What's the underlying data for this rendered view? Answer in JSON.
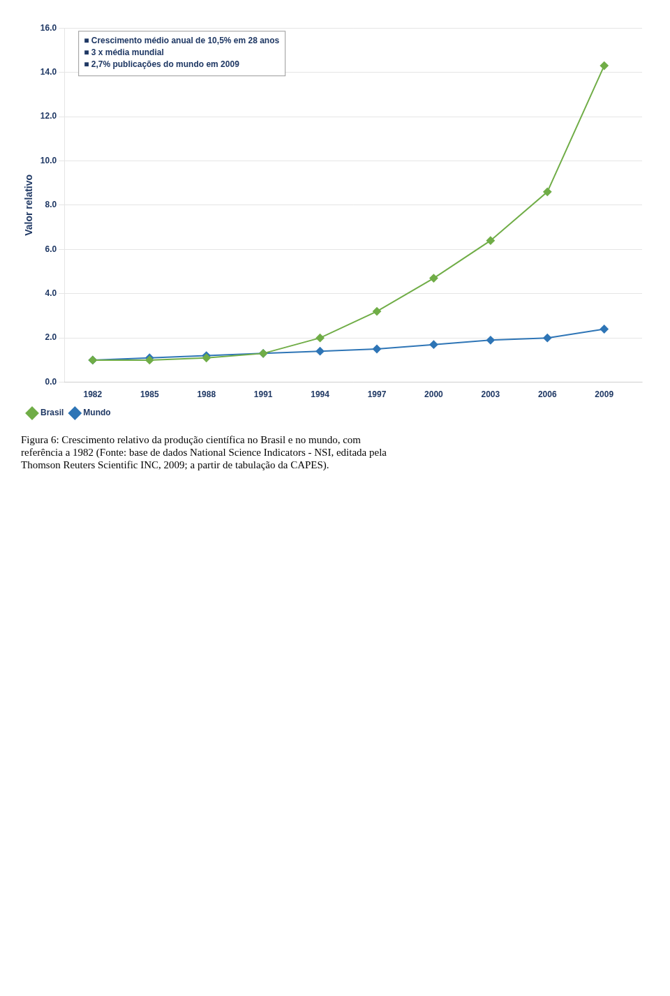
{
  "chart_data": {
    "type": "line",
    "title": "Figura 6:  Crescimento relativo da produção científica no Brasil e no mundo, com referência a 1982 (Fonte:  base de dados National Science Indicators - NSI, editada pela Thomson Reuters Scientific INC, 2009; a partir de tabulação da CAPES).",
    "y_label": "Valor relativo",
    "x": [
      1982,
      1985,
      1988,
      1991,
      1994,
      1997,
      2000,
      2003,
      2006,
      2009
    ],
    "series": [
      {
        "name": "Brasil",
        "color": "#70ad47",
        "marker": "diamond",
        "values": [
          1.0,
          1.0,
          1.1,
          1.3,
          2.0,
          3.2,
          4.7,
          6.4,
          8.6,
          14.3
        ]
      },
      {
        "name": "Mundo",
        "color": "#2e75b6",
        "marker": "diamond",
        "values": [
          1.0,
          1.1,
          1.2,
          1.3,
          1.4,
          1.5,
          1.7,
          1.9,
          2.0,
          2.4
        ]
      }
    ],
    "xlim": [
      1980.5,
      2011
    ],
    "xticks": [
      1982,
      1985,
      1988,
      1991,
      1994,
      1997,
      2000,
      2003,
      2006,
      2009
    ],
    "ylim": [
      0.0,
      16.0
    ],
    "yticks": [
      {
        "value": 0,
        "label": "0.0"
      },
      {
        "value": 2,
        "label": "2.0"
      },
      {
        "value": 4,
        "label": "4.0"
      },
      {
        "value": 6,
        "label": "6.0"
      },
      {
        "value": 8,
        "label": "8.0"
      },
      {
        "value": 10,
        "label": "10.0"
      },
      {
        "value": 12,
        "label": "12.0"
      },
      {
        "value": 14,
        "label": "14.0"
      },
      {
        "value": 16,
        "label": "16.0"
      }
    ],
    "annotations": [
      "■ Crescimento médio anual de 10,5% em 28 anos",
      "■ 3 x média mundial",
      "■ 2,7% publicações do mundo em 2009"
    ],
    "grid": "y",
    "legend": "lower left"
  }
}
